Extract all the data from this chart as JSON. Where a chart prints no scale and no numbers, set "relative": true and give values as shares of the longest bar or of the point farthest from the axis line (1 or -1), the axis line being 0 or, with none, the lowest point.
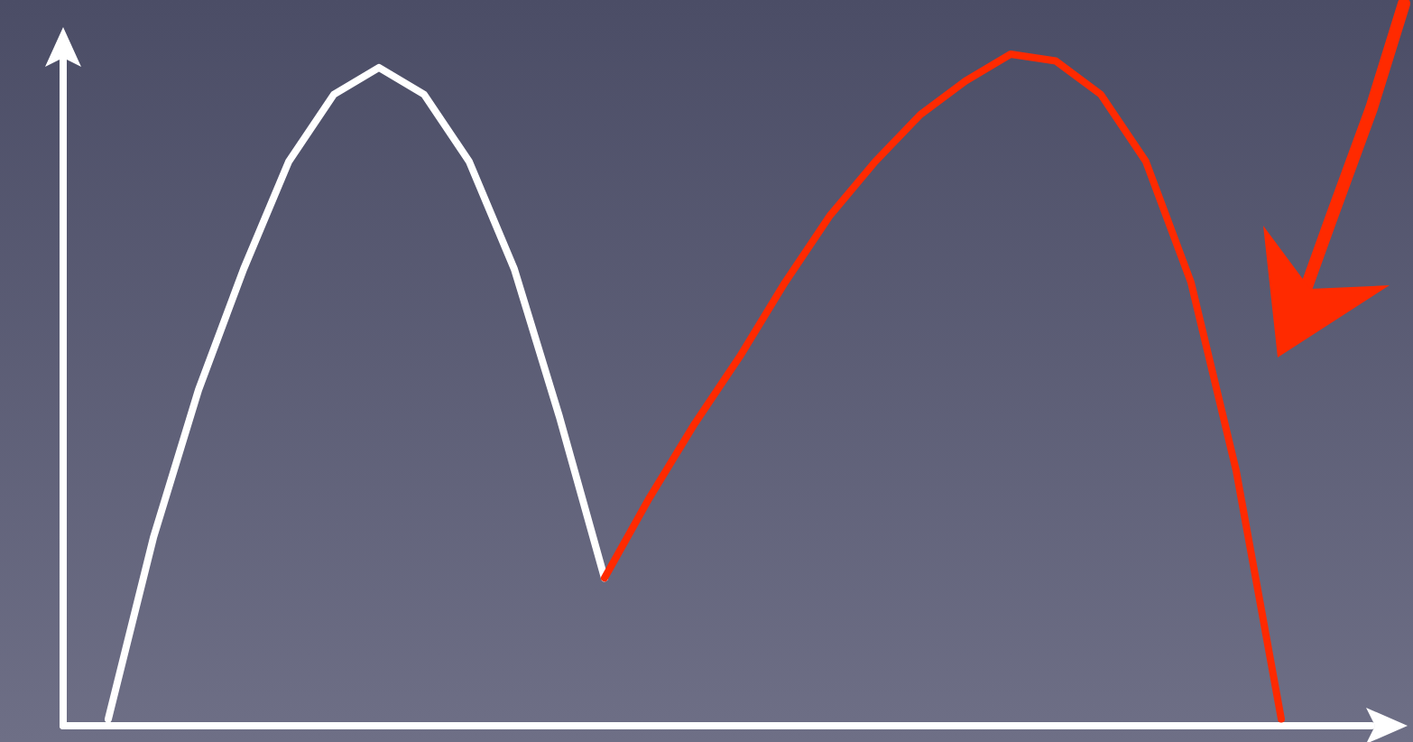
{
  "chart_data": {
    "type": "line",
    "relative": true,
    "marker": "none",
    "line_style": "solid",
    "categories": [
      null,
      null,
      null,
      null,
      null,
      null,
      null,
      null,
      null,
      null,
      null,
      null,
      null,
      null,
      null,
      null,
      null,
      null,
      null,
      null,
      null,
      null,
      null,
      null,
      null,
      null,
      null,
      null,
      null,
      null
    ],
    "series": [
      {
        "color": "#ffffff",
        "values": [
          null,
          0.01,
          0.28,
          0.5,
          0.68,
          0.84,
          0.94,
          0.98,
          0.94,
          0.84,
          0.68,
          0.46,
          0.22,
          null,
          null,
          null,
          null,
          null,
          null,
          null,
          null,
          null,
          null,
          null,
          null,
          null,
          null,
          null,
          null,
          null
        ]
      },
      {
        "color": "#ff2a00",
        "values": [
          null,
          null,
          null,
          null,
          null,
          null,
          null,
          null,
          null,
          null,
          null,
          null,
          0.22,
          0.34,
          0.45,
          0.55,
          0.66,
          0.76,
          0.84,
          0.91,
          0.96,
          1.0,
          0.99,
          0.94,
          0.84,
          0.66,
          0.38,
          0.01,
          null,
          null
        ]
      }
    ]
  }
}
